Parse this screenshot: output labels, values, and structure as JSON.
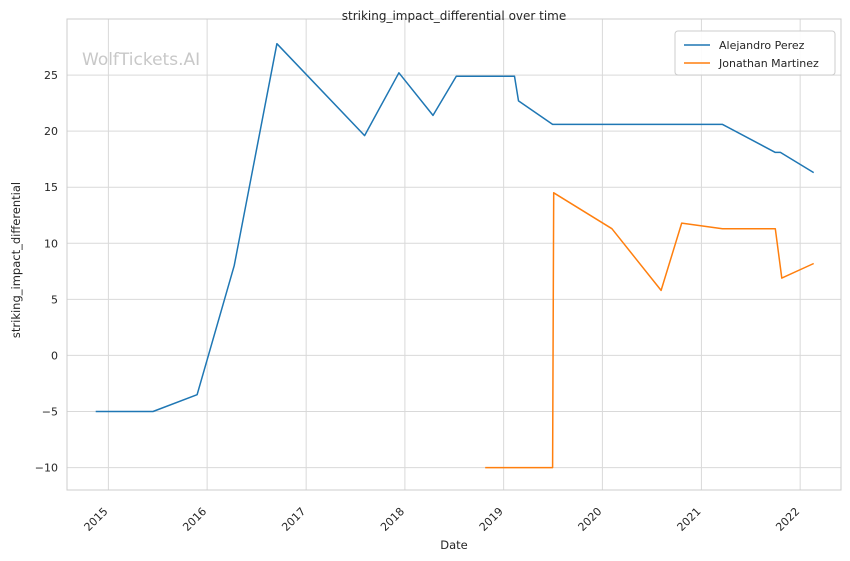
{
  "chart_data": {
    "type": "line",
    "title": "striking_impact_differential over time",
    "xlabel": "Date",
    "ylabel": "striking_impact_differential",
    "watermark": "WolfTickets.AI",
    "xlim": [
      "2014-08-01",
      "2022-06-01"
    ],
    "ylim": [
      -12,
      30
    ],
    "y_ticks": [
      -10,
      -5,
      0,
      5,
      10,
      15,
      20,
      25
    ],
    "x_ticks": [
      "2015",
      "2016",
      "2017",
      "2018",
      "2019",
      "2020",
      "2021",
      "2022"
    ],
    "grid": true,
    "legend_position": "top-right",
    "series": [
      {
        "name": "Alejandro Perez",
        "color": "#1f77b4",
        "points": [
          [
            "2014-11-15",
            -5.0
          ],
          [
            "2015-06-15",
            -5.0
          ],
          [
            "2015-11-25",
            -3.5
          ],
          [
            "2016-04-10",
            8.0
          ],
          [
            "2016-09-15",
            27.8
          ],
          [
            "2017-08-05",
            19.6
          ],
          [
            "2017-12-10",
            25.2
          ],
          [
            "2018-04-15",
            21.4
          ],
          [
            "2018-07-10",
            24.9
          ],
          [
            "2019-02-10",
            24.9
          ],
          [
            "2019-02-25",
            22.7
          ],
          [
            "2019-07-01",
            20.6
          ],
          [
            "2021-03-20",
            20.6
          ],
          [
            "2021-10-01",
            18.1
          ],
          [
            "2021-10-20",
            18.1
          ],
          [
            "2022-02-20",
            16.3
          ]
        ]
      },
      {
        "name": "Jonathan Martinez",
        "color": "#ff7f0e",
        "points": [
          [
            "2018-10-25",
            -10.0
          ],
          [
            "2019-07-01",
            -10.0
          ],
          [
            "2019-07-05",
            14.5
          ],
          [
            "2020-02-05",
            11.3
          ],
          [
            "2020-08-05",
            5.8
          ],
          [
            "2020-10-20",
            11.8
          ],
          [
            "2021-03-20",
            11.3
          ],
          [
            "2021-10-01",
            11.3
          ],
          [
            "2021-10-25",
            6.9
          ],
          [
            "2022-02-20",
            8.2
          ]
        ]
      }
    ]
  }
}
